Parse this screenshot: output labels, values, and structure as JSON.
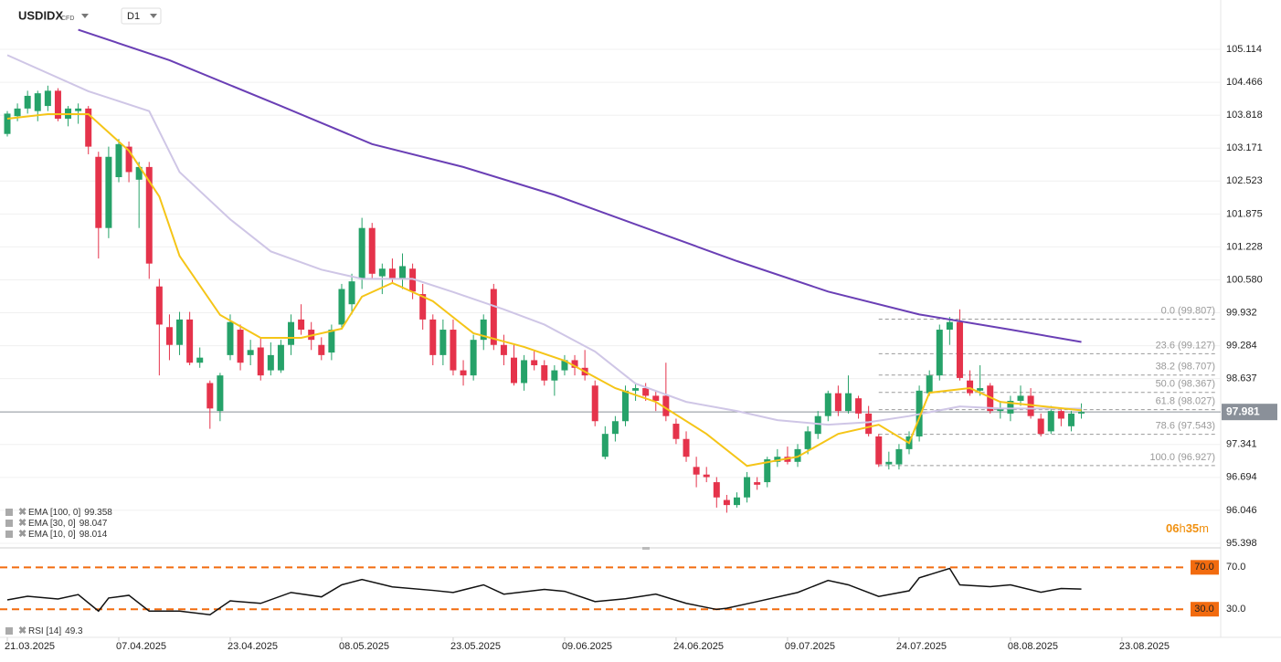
{
  "header": {
    "symbol": "USDIDX",
    "market": "CFD",
    "interval": "D1"
  },
  "chart_data": {
    "type": "candlestick",
    "ylim": [
      95.308,
      105.995
    ],
    "yticks": [
      105.114,
      104.466,
      103.818,
      103.171,
      102.523,
      101.875,
      101.228,
      {
        "value": 100.58,
        "label": "100.580"
      },
      99.932,
      99.284,
      98.637,
      97.341,
      96.694,
      96.046,
      95.398
    ],
    "grid": true,
    "up_color": "#26a269",
    "down_color": "#e5334b",
    "xticks": [
      {
        "value": 0,
        "label": "21.03.2025"
      },
      {
        "value": 11,
        "label": "07.04.2025"
      },
      {
        "value": 22,
        "label": "23.04.2025"
      },
      {
        "value": 33,
        "label": "08.05.2025"
      },
      {
        "value": 44,
        "label": "23.05.2025"
      },
      {
        "value": 55,
        "label": "09.06.2025"
      },
      {
        "value": 66,
        "label": "24.06.2025"
      },
      {
        "value": 77,
        "label": "09.07.2025"
      },
      {
        "value": 88,
        "label": "24.07.2025"
      },
      {
        "value": 99,
        "label": "08.08.2025"
      },
      {
        "value": 110,
        "label": "23.08.2025"
      }
    ],
    "ohlc": [
      [
        103.45,
        103.9,
        103.4,
        103.85
      ],
      [
        103.8,
        104.05,
        103.7,
        103.95
      ],
      [
        103.95,
        104.3,
        103.85,
        104.2
      ],
      [
        103.9,
        104.3,
        103.7,
        104.25
      ],
      [
        104.0,
        104.4,
        103.9,
        104.3
      ],
      [
        104.3,
        104.35,
        103.7,
        103.75
      ],
      [
        103.75,
        104.0,
        103.6,
        103.95
      ],
      [
        103.9,
        104.05,
        103.65,
        103.95
      ],
      [
        103.95,
        104.0,
        103.05,
        103.2
      ],
      [
        103.0,
        103.1,
        101.0,
        101.6
      ],
      [
        101.6,
        103.2,
        101.4,
        103.0
      ],
      [
        102.6,
        103.35,
        102.5,
        103.25
      ],
      [
        103.2,
        103.3,
        102.5,
        102.7
      ],
      [
        102.55,
        102.9,
        101.6,
        102.8
      ],
      [
        102.8,
        102.9,
        100.6,
        100.9
      ],
      [
        100.45,
        100.6,
        98.7,
        99.7
      ],
      [
        99.65,
        99.9,
        99.0,
        99.3
      ],
      [
        99.3,
        99.95,
        99.1,
        99.8
      ],
      [
        99.8,
        99.95,
        98.9,
        98.95
      ],
      [
        98.95,
        99.25,
        98.85,
        99.05
      ],
      [
        98.55,
        98.6,
        97.65,
        98.05
      ],
      [
        98.0,
        98.75,
        97.8,
        98.7
      ],
      [
        99.1,
        99.9,
        99.0,
        99.75
      ],
      [
        99.6,
        99.7,
        98.8,
        98.95
      ],
      [
        99.1,
        99.4,
        98.9,
        99.2
      ],
      [
        99.25,
        99.45,
        98.6,
        98.7
      ],
      [
        98.8,
        99.35,
        98.7,
        99.1
      ],
      [
        98.8,
        99.4,
        98.75,
        99.3
      ],
      [
        99.3,
        99.9,
        99.1,
        99.75
      ],
      [
        99.8,
        100.1,
        99.5,
        99.6
      ],
      [
        99.6,
        99.75,
        99.2,
        99.4
      ],
      [
        99.3,
        99.45,
        99.0,
        99.1
      ],
      [
        99.15,
        99.7,
        99.0,
        99.6
      ],
      [
        99.7,
        100.5,
        99.6,
        100.4
      ],
      [
        100.1,
        100.7,
        99.9,
        100.55
      ],
      [
        100.6,
        101.8,
        100.4,
        101.6
      ],
      [
        101.6,
        101.7,
        100.6,
        100.7
      ],
      [
        100.65,
        100.9,
        100.3,
        100.8
      ],
      [
        100.8,
        101.0,
        100.5,
        100.6
      ],
      [
        100.6,
        101.1,
        100.4,
        100.85
      ],
      [
        100.8,
        100.9,
        100.2,
        100.35
      ],
      [
        100.3,
        100.5,
        99.6,
        99.8
      ],
      [
        99.8,
        99.9,
        98.9,
        99.1
      ],
      [
        99.1,
        99.8,
        98.9,
        99.6
      ],
      [
        99.6,
        99.8,
        98.7,
        98.8
      ],
      [
        98.8,
        99.0,
        98.5,
        98.7
      ],
      [
        98.7,
        99.5,
        98.6,
        99.4
      ],
      [
        99.4,
        99.9,
        99.2,
        99.8
      ],
      [
        100.4,
        100.5,
        99.2,
        99.3
      ],
      [
        99.3,
        99.5,
        98.9,
        99.1
      ],
      [
        99.05,
        99.3,
        98.5,
        98.55
      ],
      [
        98.55,
        99.1,
        98.4,
        99.0
      ],
      [
        99.0,
        99.2,
        98.8,
        98.9
      ],
      [
        98.9,
        99.0,
        98.5,
        98.6
      ],
      [
        98.6,
        98.9,
        98.3,
        98.8
      ],
      [
        98.8,
        99.1,
        98.7,
        99.0
      ],
      [
        99.0,
        99.1,
        98.7,
        98.85
      ],
      [
        98.85,
        99.2,
        98.6,
        98.7
      ],
      [
        98.5,
        98.6,
        97.7,
        97.8
      ],
      [
        97.1,
        97.7,
        97.05,
        97.55
      ],
      [
        97.55,
        97.9,
        97.4,
        97.8
      ],
      [
        97.8,
        98.5,
        97.7,
        98.4
      ],
      [
        98.4,
        98.55,
        98.2,
        98.45
      ],
      [
        98.45,
        98.55,
        98.2,
        98.3
      ],
      [
        98.3,
        98.4,
        98.0,
        98.2
      ],
      [
        98.3,
        98.95,
        97.8,
        97.9
      ],
      [
        97.75,
        97.85,
        97.35,
        97.45
      ],
      [
        97.45,
        97.6,
        97.0,
        97.1
      ],
      [
        96.9,
        97.1,
        96.5,
        96.75
      ],
      [
        96.75,
        96.9,
        96.6,
        96.7
      ],
      [
        96.6,
        96.7,
        96.1,
        96.3
      ],
      [
        96.25,
        96.35,
        96.0,
        96.15
      ],
      [
        96.15,
        96.4,
        96.1,
        96.3
      ],
      [
        96.3,
        96.8,
        96.2,
        96.7
      ],
      [
        96.6,
        96.7,
        96.45,
        96.55
      ],
      [
        96.6,
        97.1,
        96.5,
        97.05
      ],
      [
        97.0,
        97.25,
        96.9,
        97.1
      ],
      [
        97.1,
        97.3,
        96.95,
        97.0
      ],
      [
        97.0,
        97.35,
        96.9,
        97.25
      ],
      [
        97.25,
        97.7,
        97.15,
        97.6
      ],
      [
        97.55,
        98.0,
        97.45,
        97.9
      ],
      [
        97.9,
        98.4,
        97.8,
        98.35
      ],
      [
        98.35,
        98.5,
        97.9,
        98.0
      ],
      [
        98.0,
        98.7,
        97.95,
        98.35
      ],
      [
        98.25,
        98.3,
        97.85,
        97.95
      ],
      [
        97.95,
        98.1,
        97.5,
        97.55
      ],
      [
        97.5,
        97.55,
        96.9,
        96.95
      ],
      [
        96.95,
        97.2,
        96.85,
        97.0
      ],
      [
        96.95,
        97.35,
        96.85,
        97.25
      ],
      [
        97.25,
        97.6,
        97.15,
        97.5
      ],
      [
        97.5,
        98.5,
        97.4,
        98.4
      ],
      [
        98.35,
        98.8,
        98.3,
        98.7
      ],
      [
        98.7,
        99.7,
        98.6,
        99.6
      ],
      [
        99.6,
        99.85,
        99.3,
        99.75
      ],
      [
        99.75,
        100.0,
        98.6,
        98.65
      ],
      [
        98.6,
        98.8,
        98.3,
        98.35
      ],
      [
        98.4,
        98.9,
        98.3,
        98.45
      ],
      [
        98.5,
        98.55,
        97.95,
        98.0
      ],
      [
        98.0,
        98.2,
        97.85,
        98.05
      ],
      [
        97.95,
        98.3,
        97.8,
        98.2
      ],
      [
        98.2,
        98.5,
        98.1,
        98.3
      ],
      [
        98.3,
        98.45,
        97.85,
        97.9
      ],
      [
        97.85,
        97.95,
        97.5,
        97.55
      ],
      [
        97.6,
        98.1,
        97.55,
        98.0
      ],
      [
        98.0,
        98.05,
        97.7,
        97.85
      ],
      [
        97.7,
        98.0,
        97.6,
        97.95
      ],
      [
        97.95,
        98.15,
        97.85,
        97.98
      ]
    ],
    "last_price": 97.981,
    "series": [
      {
        "name": "EMA [100, 0]",
        "color": "#6a3fb5",
        "x": [
          7,
          16,
          27,
          36,
          45,
          54,
          63,
          72,
          81,
          90,
          99,
          106
        ],
        "values": [
          105.5,
          104.9,
          104.0,
          103.25,
          102.8,
          102.25,
          101.6,
          100.95,
          100.35,
          99.9,
          99.6,
          99.358
        ]
      },
      {
        "name": "EMA [30, 0]",
        "color": "#cfc6e6",
        "x": [
          0,
          8,
          14,
          17,
          22,
          26,
          31,
          35,
          40,
          44,
          49,
          53,
          58,
          62,
          67,
          72,
          76,
          81,
          85,
          89,
          94,
          98,
          106
        ],
        "values": [
          105.0,
          104.29,
          103.9,
          102.7,
          101.77,
          101.14,
          100.78,
          100.6,
          100.6,
          100.34,
          100.0,
          99.7,
          99.17,
          98.54,
          98.18,
          98.0,
          97.82,
          97.73,
          97.78,
          97.9,
          98.09,
          98.05,
          98.047
        ]
      },
      {
        "name": "EMA [10, 0]",
        "color": "#f5c518",
        "x": [
          0,
          4,
          8,
          12,
          15,
          17,
          21,
          25,
          29,
          33,
          35,
          38,
          42,
          46,
          51,
          55,
          60,
          64,
          69,
          73,
          78,
          82,
          86,
          89,
          91,
          95,
          98,
          106
        ],
        "values": [
          103.75,
          103.84,
          103.84,
          103.12,
          102.22,
          101.05,
          99.89,
          99.44,
          99.44,
          99.62,
          100.25,
          100.52,
          100.16,
          99.53,
          99.26,
          98.99,
          98.45,
          98.18,
          97.55,
          96.92,
          97.1,
          97.55,
          97.73,
          97.37,
          98.36,
          98.45,
          98.18,
          98.014
        ]
      }
    ],
    "fib_levels": [
      {
        "label": "0.0 (99.807)",
        "value": 99.807
      },
      {
        "label": "23.6 (99.127)",
        "value": 99.127
      },
      {
        "label": "38.2 (98.707)",
        "value": 98.707
      },
      {
        "label": "50.0 (98.367)",
        "value": 98.367
      },
      {
        "label": "61.8 (98.027)",
        "value": 98.027
      },
      {
        "label": "78.6 (97.543)",
        "value": 97.543
      },
      {
        "label": "100.0 (96.927)",
        "value": 96.927
      }
    ],
    "fib_start": 86,
    "countdown": [
      "06",
      "h",
      "35",
      "m"
    ],
    "rsi": {
      "name": "RSI [14]",
      "color": "#111111",
      "level_color": "#f26b0f",
      "ylim": [
        4,
        86
      ],
      "yticks": [
        {
          "value": 70,
          "label": "70.0"
        },
        {
          "value": 30,
          "label": "30.0"
        }
      ],
      "x": [
        0,
        2,
        5,
        7,
        9,
        10,
        12,
        14,
        17,
        20,
        22,
        25,
        28,
        31,
        33,
        35,
        38,
        42,
        44,
        47,
        49,
        53,
        55,
        58,
        61,
        64,
        67,
        70,
        71,
        74,
        78,
        81,
        83,
        86,
        89,
        90,
        93,
        94,
        97,
        99,
        102,
        104,
        106
      ],
      "values": [
        38.9,
        42.4,
        39.8,
        44,
        28.2,
        40.7,
        43.3,
        28.2,
        28.2,
        24.7,
        38,
        35.6,
        46,
        41.8,
        53.3,
        58.4,
        51.3,
        48,
        46,
        53.3,
        44.4,
        48.9,
        47.1,
        37.3,
        40,
        44.4,
        35.6,
        29.8,
        30.9,
        37.3,
        46,
        57.5,
        53.3,
        42.2,
        47.6,
        60,
        69,
        53.3,
        51.5,
        53.3,
        46.2,
        49.8,
        49.3
      ]
    }
  }
}
